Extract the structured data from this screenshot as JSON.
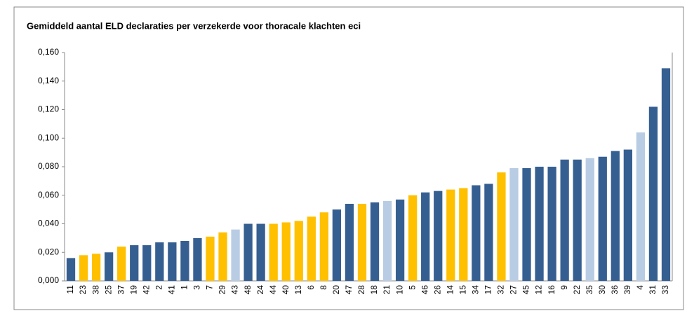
{
  "chart_data": {
    "type": "bar",
    "title": "Gemiddeld aantal ELD declaraties per verzekerde voor thoracale klachten eci",
    "categories": [
      "11",
      "23",
      "38",
      "25",
      "37",
      "19",
      "42",
      "2",
      "41",
      "1",
      "3",
      "7",
      "29",
      "43",
      "48",
      "24",
      "44",
      "40",
      "13",
      "6",
      "8",
      "20",
      "47",
      "28",
      "18",
      "21",
      "10",
      "5",
      "46",
      "26",
      "14",
      "15",
      "34",
      "17",
      "32",
      "27",
      "45",
      "12",
      "16",
      "9",
      "22",
      "35",
      "30",
      "36",
      "39",
      "4",
      "31",
      "33"
    ],
    "values": [
      0.016,
      0.018,
      0.019,
      0.02,
      0.024,
      0.025,
      0.025,
      0.027,
      0.027,
      0.028,
      0.03,
      0.031,
      0.034,
      0.036,
      0.04,
      0.04,
      0.04,
      0.041,
      0.042,
      0.045,
      0.048,
      0.05,
      0.054,
      0.054,
      0.055,
      0.056,
      0.057,
      0.06,
      0.062,
      0.063,
      0.064,
      0.065,
      0.067,
      0.068,
      0.076,
      0.079,
      0.079,
      0.08,
      0.08,
      0.085,
      0.085,
      0.086,
      0.087,
      0.091,
      0.092,
      0.104,
      0.122,
      0.149
    ],
    "colors": [
      "#365f91",
      "#ffc000",
      "#ffc000",
      "#365f91",
      "#ffc000",
      "#365f91",
      "#365f91",
      "#365f91",
      "#365f91",
      "#365f91",
      "#365f91",
      "#ffc000",
      "#ffc000",
      "#b8cce4",
      "#365f91",
      "#365f91",
      "#ffc000",
      "#ffc000",
      "#ffc000",
      "#ffc000",
      "#ffc000",
      "#365f91",
      "#365f91",
      "#ffc000",
      "#365f91",
      "#b8cce4",
      "#365f91",
      "#ffc000",
      "#365f91",
      "#365f91",
      "#ffc000",
      "#ffc000",
      "#365f91",
      "#365f91",
      "#ffc000",
      "#b8cce4",
      "#365f91",
      "#365f91",
      "#365f91",
      "#365f91",
      "#365f91",
      "#b8cce4",
      "#365f91",
      "#365f91",
      "#365f91",
      "#b8cce4",
      "#365f91",
      "#365f91"
    ],
    "ylim": [
      0,
      0.16
    ],
    "yticks": [
      {
        "value": 0,
        "label": "0,000"
      },
      {
        "value": 0.02,
        "label": "0,020"
      },
      {
        "value": 0.04,
        "label": "0,040"
      },
      {
        "value": 0.06,
        "label": "0,060"
      },
      {
        "value": 0.08,
        "label": "0,080"
      },
      {
        "value": 0.1,
        "label": "0,100"
      },
      {
        "value": 0.12,
        "label": "0,120"
      },
      {
        "value": 0.14,
        "label": "0,140"
      },
      {
        "value": 0.16,
        "label": "0,160"
      }
    ],
    "grid": false
  }
}
